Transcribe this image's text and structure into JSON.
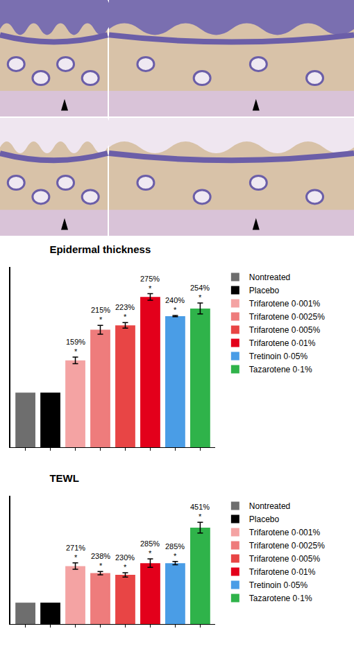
{
  "chart_data": [
    {
      "type": "bar",
      "title": "Epidermal thickness",
      "series": [
        {
          "name": "Nontreated",
          "color": "#6e6e6e",
          "values": [
            100
          ],
          "errors": [
            null
          ],
          "value_labels": [
            null
          ]
        },
        {
          "name": "Placebo",
          "color": "#000000",
          "values": [
            100
          ],
          "errors": [
            null
          ],
          "value_labels": [
            null
          ]
        },
        {
          "name": "Trifarotene 0·001%",
          "color": "#f4a3a3",
          "values": [
            159
          ],
          "errors": [
            6
          ],
          "value_labels": [
            "159%\n*"
          ]
        },
        {
          "name": "Trifarotene 0·0025%",
          "color": "#ee7c7c",
          "values": [
            215
          ],
          "errors": [
            8
          ],
          "value_labels": [
            "215%\n*"
          ]
        },
        {
          "name": "Trifarotene 0·005%",
          "color": "#e84545",
          "values": [
            223
          ],
          "errors": [
            5
          ],
          "value_labels": [
            "223%\n*"
          ]
        },
        {
          "name": "Trifarotene 0·01%",
          "color": "#e3001b",
          "values": [
            275
          ],
          "errors": [
            6
          ],
          "value_labels": [
            "275%\n*"
          ]
        },
        {
          "name": "Tretinoin 0·05%",
          "color": "#4a9de6",
          "values": [
            240
          ],
          "errors": [
            1
          ],
          "value_labels": [
            "240%\n*"
          ]
        },
        {
          "name": "Tazarotene 0·1%",
          "color": "#2fb34a",
          "values": [
            254
          ],
          "errors": [
            10
          ],
          "value_labels": [
            "254%\n*"
          ]
        }
      ],
      "ylim": [
        0,
        330
      ],
      "yticks": [],
      "grid": false,
      "legend": "right",
      "data_labels": true,
      "tick_labels": false
    },
    {
      "type": "bar",
      "title": "TEWL",
      "series": [
        {
          "name": "Nontreated",
          "color": "#6e6e6e",
          "values": [
            100
          ],
          "errors": [
            null
          ],
          "value_labels": [
            null
          ]
        },
        {
          "name": "Placebo",
          "color": "#000000",
          "values": [
            100
          ],
          "errors": [
            null
          ],
          "value_labels": [
            null
          ]
        },
        {
          "name": "Trifarotene 0·001%",
          "color": "#f4a3a3",
          "values": [
            271
          ],
          "errors": [
            15
          ],
          "value_labels": [
            "271%\n*"
          ]
        },
        {
          "name": "Trifarotene 0·0025%",
          "color": "#ee7c7c",
          "values": [
            238
          ],
          "errors": [
            8
          ],
          "value_labels": [
            "238%\n*"
          ]
        },
        {
          "name": "Trifarotene 0·005%",
          "color": "#e84545",
          "values": [
            230
          ],
          "errors": [
            10
          ],
          "value_labels": [
            "230%\n*"
          ]
        },
        {
          "name": "Trifarotene 0·01%",
          "color": "#e3001b",
          "values": [
            285
          ],
          "errors": [
            20
          ],
          "value_labels": [
            "285%\n*"
          ]
        },
        {
          "name": "Tretinoin 0·05%",
          "color": "#4a9de6",
          "values": [
            285
          ],
          "errors": [
            8
          ],
          "value_labels": [
            "285%\n*"
          ]
        },
        {
          "name": "Tazarotene 0·1%",
          "color": "#2fb34a",
          "values": [
            451
          ],
          "errors": [
            25
          ],
          "value_labels": [
            "451%\n*"
          ]
        }
      ],
      "ylim": [
        0,
        600
      ],
      "yticks": [],
      "grid": false,
      "legend": "right",
      "data_labels": true,
      "tick_labels": false
    }
  ]
}
